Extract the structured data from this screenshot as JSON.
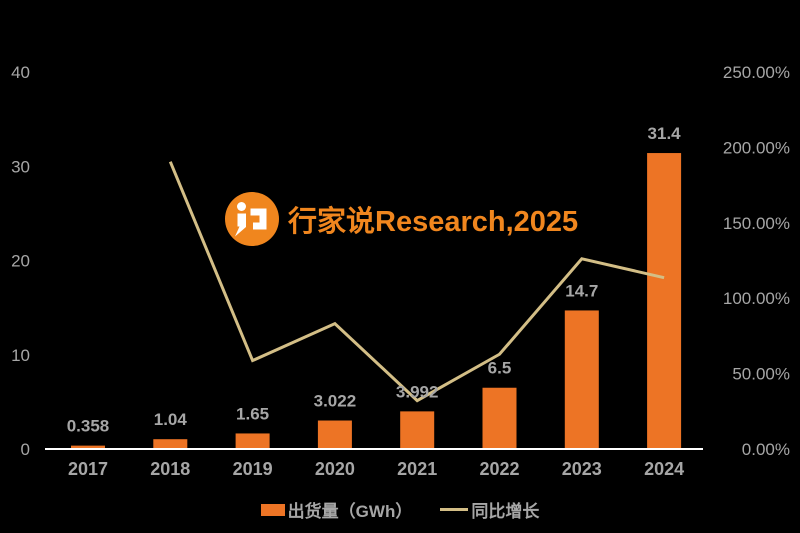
{
  "colors": {
    "background": "#000000",
    "bar": "#ED7425",
    "line": "#D3BE86",
    "text-muted": "#A6A6A6",
    "axis-line": "#FFFFFF",
    "brand": "#F0861E"
  },
  "watermark": {
    "icon": "speech-bubble-logo-icon",
    "text": "行家说Research,2025"
  },
  "chart_data": {
    "type": "bar",
    "subtype": "bar+line-combo",
    "categories": [
      "2017",
      "2018",
      "2019",
      "2020",
      "2021",
      "2022",
      "2023",
      "2024"
    ],
    "series": [
      {
        "name": "出货量（GWh）",
        "type": "bar",
        "axis": "left",
        "values": [
          0.358,
          1.04,
          1.65,
          3.022,
          3.992,
          6.5,
          14.7,
          31.4
        ],
        "labels": [
          "0.358",
          "1.04",
          "1.65",
          "3.022",
          "3.992",
          "6.5",
          "14.7",
          "31.4"
        ]
      },
      {
        "name": "同比增长",
        "type": "line",
        "axis": "right",
        "values": [
          null,
          190.5,
          58.65,
          83.15,
          32.1,
          62.83,
          126.15,
          113.61
        ]
      }
    ],
    "left_axis": {
      "min": 0,
      "max": 40,
      "tick_values": [
        0,
        10,
        20,
        30,
        40
      ],
      "tick_labels": [
        "0",
        "10",
        "20",
        "30",
        "40"
      ]
    },
    "right_axis": {
      "min": 0,
      "max": 250,
      "tick_values": [
        0,
        50,
        100,
        150,
        200,
        250
      ],
      "tick_labels": [
        "0.00%",
        "50.00%",
        "100.00%",
        "150.00%",
        "200.00%",
        "250.00%"
      ]
    },
    "grid": false,
    "legend_position": "bottom"
  }
}
